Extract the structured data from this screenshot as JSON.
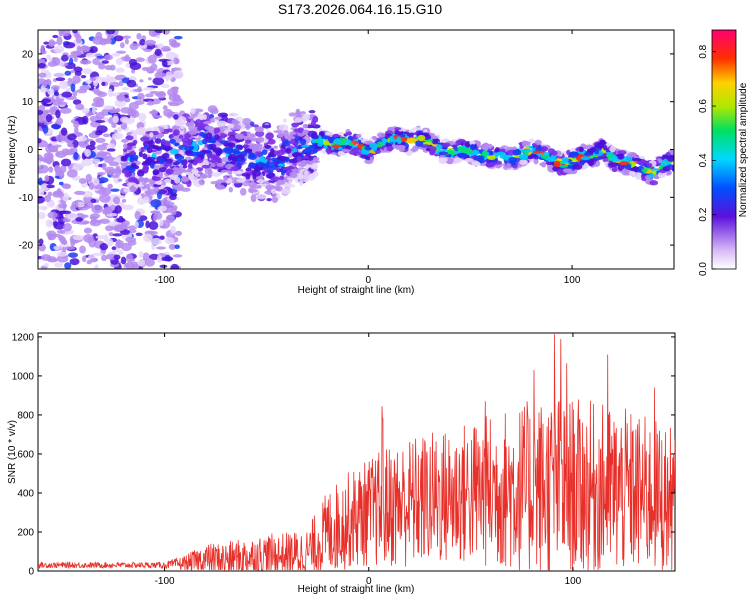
{
  "title": "S173.2026.064.16.15.G10",
  "chart_data": [
    {
      "type": "heatmap",
      "xlabel": "Height of straight line (km)",
      "ylabel": "Frequency (Hz)",
      "xlim": [
        -162,
        150
      ],
      "ylim": [
        -25,
        25
      ],
      "xticks": [
        -100,
        0,
        100
      ],
      "yticks": [
        -20,
        -10,
        0,
        10,
        20
      ],
      "ridge": {
        "x": [
          -120,
          -110,
          -100,
          -95,
          -90,
          -85,
          -80,
          -75,
          -70,
          -65,
          -60,
          -55,
          -50,
          -45,
          -40,
          -35,
          -30,
          -25,
          -20,
          -15,
          -10,
          -5,
          0,
          5,
          10,
          15,
          20,
          25,
          30,
          35,
          40,
          45,
          50,
          55,
          60,
          65,
          70,
          75,
          80,
          85,
          90,
          95,
          100,
          105,
          110,
          115,
          120,
          125,
          130,
          135,
          140,
          145,
          150
        ],
        "freq": [
          -3,
          -2,
          -1,
          0,
          -0.5,
          0.5,
          1,
          0.5,
          -1,
          0,
          -2,
          -3,
          -2,
          -4,
          -1,
          0,
          1,
          2,
          1.5,
          1,
          1.5,
          1,
          -0.5,
          1,
          2,
          2.5,
          1.5,
          2.5,
          1.5,
          0,
          -0.5,
          0,
          -0.5,
          -1,
          -1.5,
          -1.5,
          -2,
          -1,
          0,
          -1,
          -2,
          -3,
          -2.5,
          -1.5,
          -1.5,
          0,
          -2,
          -2.5,
          -3,
          -4,
          -5,
          -3,
          -2.5
        ]
      },
      "colorbar": {
        "label": "Normalized spectral amplitude",
        "range": [
          0,
          0.88
        ],
        "ticks": [
          "0.0",
          "0.2",
          "0.4",
          "0.6",
          "0.8"
        ]
      }
    },
    {
      "type": "line",
      "xlabel": "Height of straight line (km)",
      "ylabel": "SNR (10 * v/v)",
      "xlim": [
        -162,
        150
      ],
      "ylim": [
        0,
        1220
      ],
      "xticks": [
        -100,
        0,
        100
      ],
      "yticks": [
        0,
        200,
        400,
        600,
        800,
        1000,
        1200
      ],
      "series": [
        {
          "name": "SNR",
          "color": "#e8302a",
          "envelope": {
            "x": [
              -162,
              -140,
              -120,
              -100,
              -90,
              -80,
              -70,
              -60,
              -50,
              -40,
              -30,
              -20,
              -10,
              0,
              10,
              20,
              30,
              40,
              50,
              60,
              70,
              80,
              90,
              100,
              110,
              120,
              130,
              140,
              150
            ],
            "base": [
              30,
              30,
              30,
              30,
              40,
              60,
              60,
              70,
              80,
              80,
              90,
              200,
              260,
              300,
              330,
              350,
              370,
              380,
              400,
              410,
              420,
              420,
              430,
              430,
              420,
              410,
              400,
              380,
              350
            ],
            "amp": [
              15,
              15,
              15,
              15,
              40,
              80,
              90,
              100,
              110,
              120,
              130,
              220,
              250,
              280,
              320,
              340,
              350,
              360,
              380,
              400,
              430,
              460,
              480,
              460,
              450,
              440,
              420,
              400,
              380
            ]
          },
          "peaks": [
            {
              "x": 6.5,
              "y": 845
            },
            {
              "x": 6.8,
              "y": 780
            },
            {
              "x": 91,
              "y": 1215
            },
            {
              "x": 94,
              "y": 1190
            },
            {
              "x": 97,
              "y": 1065
            },
            {
              "x": 117,
              "y": 1110
            },
            {
              "x": 81,
              "y": 1030
            },
            {
              "x": 57,
              "y": 870
            },
            {
              "x": 140,
              "y": 940
            }
          ]
        }
      ]
    }
  ]
}
